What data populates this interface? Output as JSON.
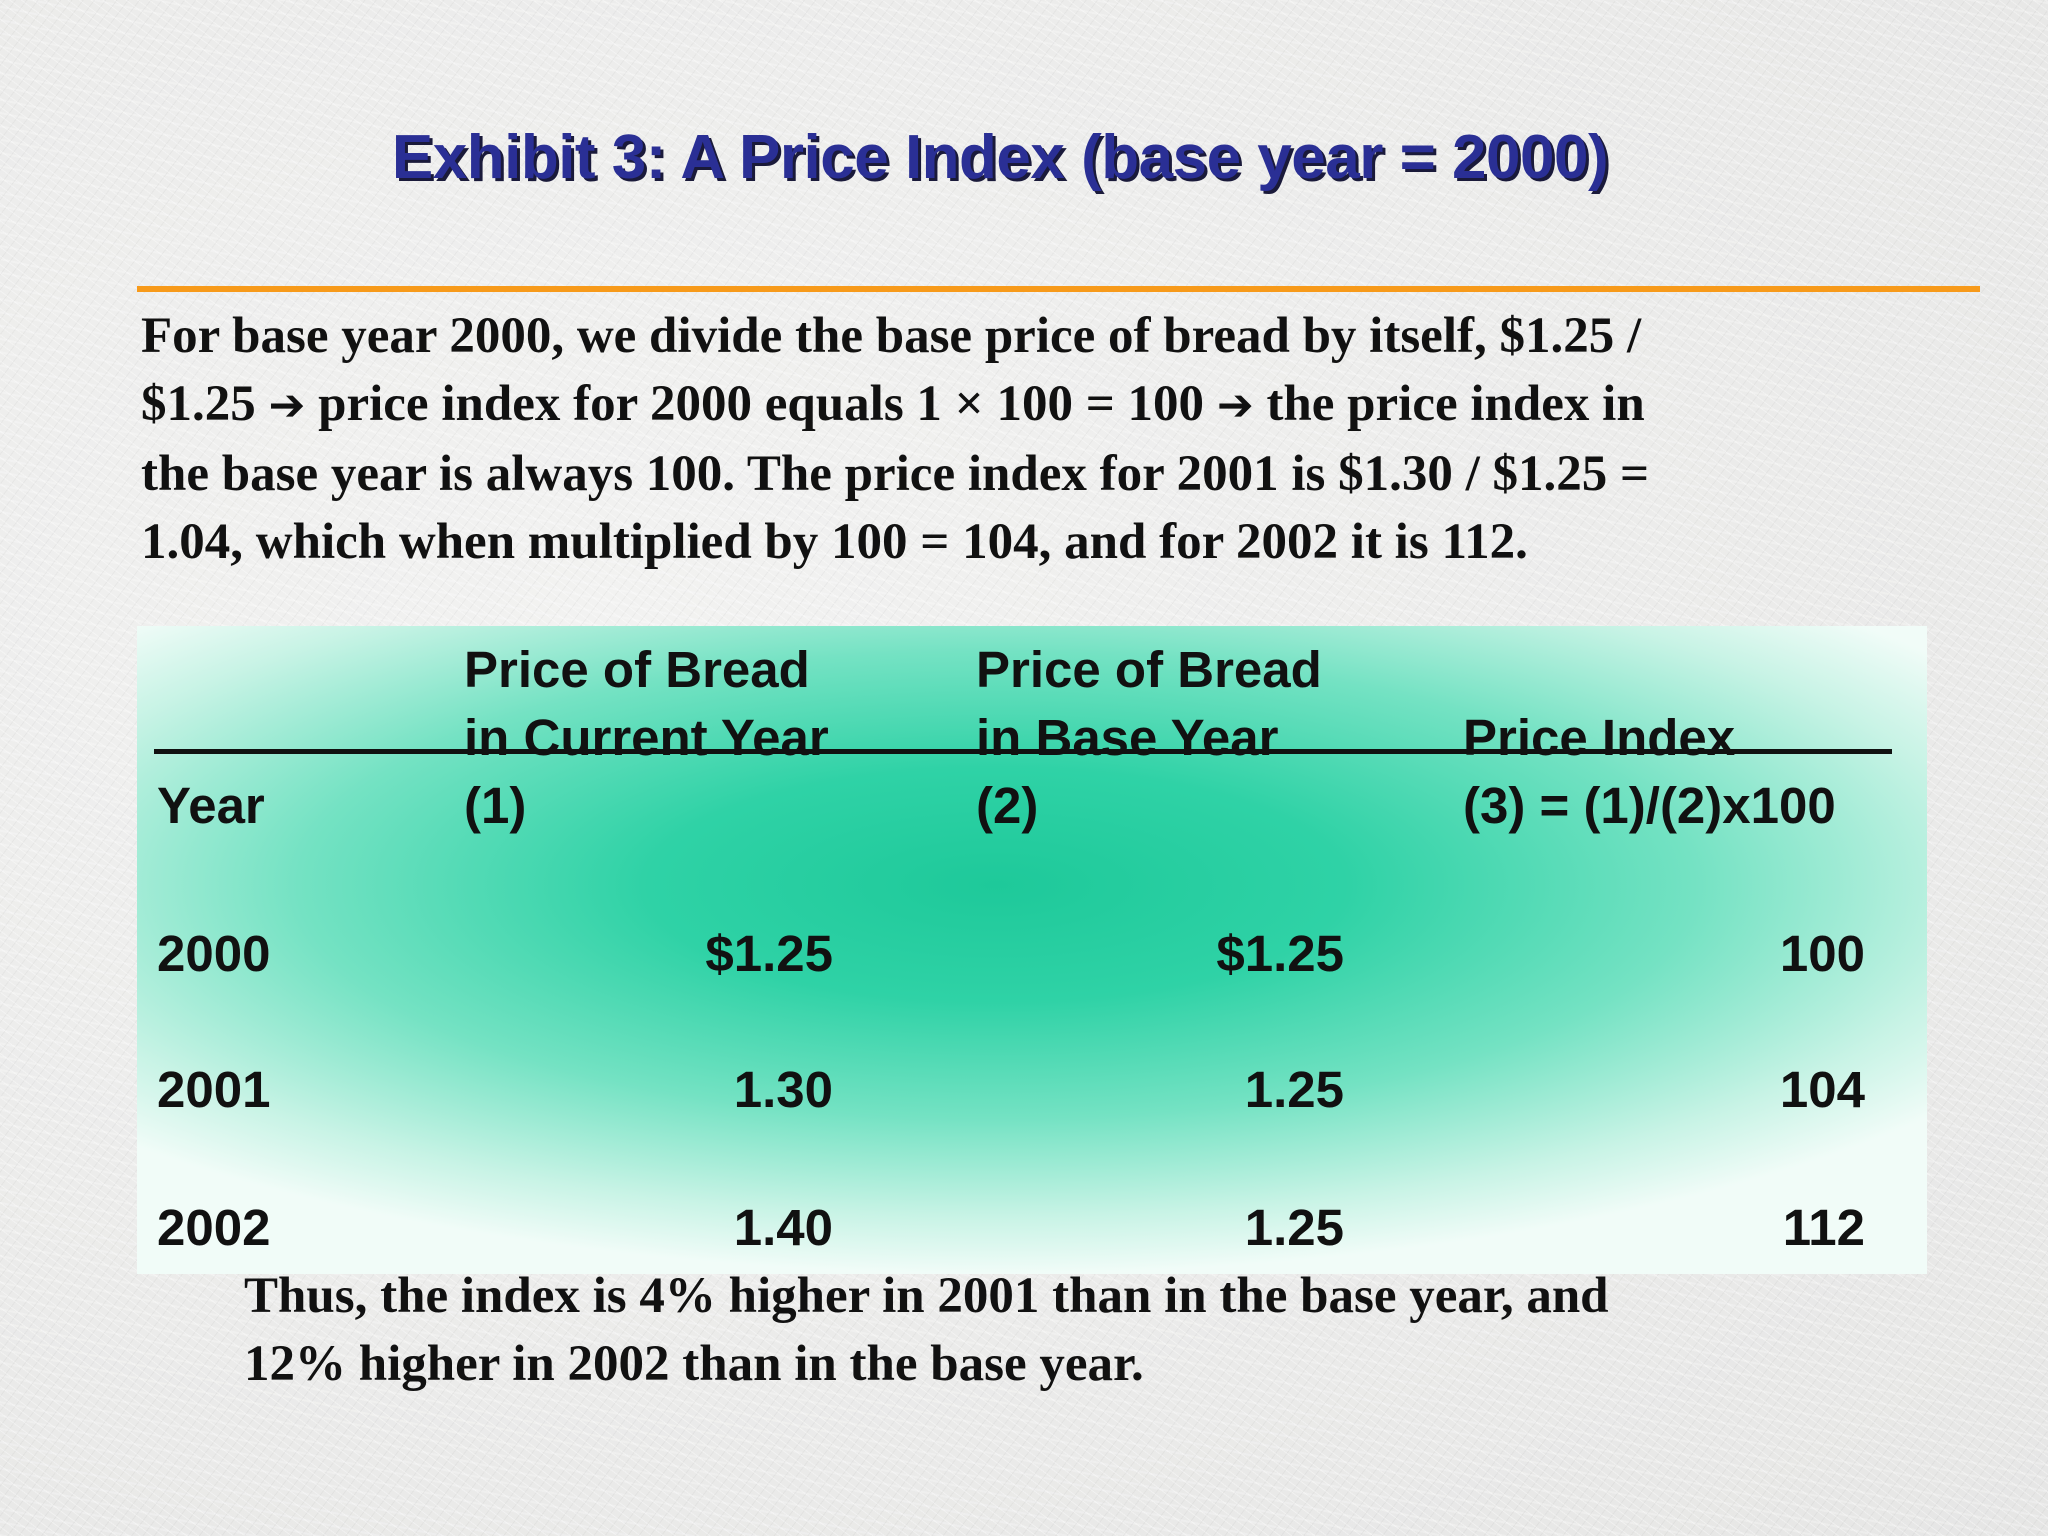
{
  "title": "Exhibit 3: A Price Index (base year = 2000)",
  "intro": {
    "line1": "For base year 2000, we divide the base price of bread by itself, $1.25 /",
    "line2_a": "$1.25",
    "line2_arrow1": "➔",
    "line2_b": "price index for 2000 equals 1 × 100 = 100",
    "line2_arrow2": "➔",
    "line2_c": "the price index in",
    "line3": "the base year is always 100.  The price index for 2001 is $1.30 / $1.25 =",
    "line4": "1.04, which when multiplied by 100 = 104, and for 2002 it is 112."
  },
  "table": {
    "headers": {
      "year": {
        "line3": "Year"
      },
      "current": {
        "line1": "Price of Bread",
        "line2": "in Current Year",
        "line3": "(1)"
      },
      "base": {
        "line1": "Price of Bread",
        "line2": "in Base Year",
        "line3": "(2)"
      },
      "index": {
        "line2": "Price Index",
        "line3": "(3) = (1)/(2)x100"
      }
    },
    "rows": [
      {
        "year": "2000",
        "current": "$1.25",
        "base": "$1.25",
        "index": "100"
      },
      {
        "year": "2001",
        "current": "1.30",
        "base": "1.25",
        "index": "104"
      },
      {
        "year": "2002",
        "current": "1.40",
        "base": "1.25",
        "index": "112"
      }
    ]
  },
  "closing": {
    "line1": "Thus, the index is 4% higher in 2001 than in the base year, and",
    "line2": "12% higher in 2002 than in the base year."
  },
  "colors": {
    "title": "#2a2f95",
    "rule": "#f79a1a",
    "panel": "#1ec99a"
  }
}
